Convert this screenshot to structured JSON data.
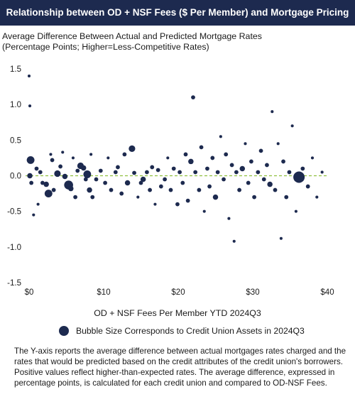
{
  "header": {
    "title": "Relationship between OD + NSF Fees ($ Per Member) and Mortgage Pricing"
  },
  "legend_text": "Bubble Size Corresponds to Credit Union Assets in 2024Q3",
  "footnote": "The Y-axis reports the average difference between actual mortgages rates charged and the rates that would be predicted based on the credit attributes of the credit union's borrowers. Positive values reflect higher-than-expected rates. The average difference, expressed in percentage points, is calculated for each credit union and compared to OD-NSF Fees.",
  "chart_data": {
    "type": "scatter",
    "subtitle_line1": "Average Difference Between Actual and Predicted Mortgage Rates",
    "subtitle_line2": "(Percentage Points; Higher=Less-Competitive Rates)",
    "xlabel": "OD + NSF Fees Per Member YTD 2024Q3",
    "ylabel": "",
    "xlim": [
      0,
      40
    ],
    "ylim": [
      -1.5,
      1.5
    ],
    "x_ticks": [
      {
        "value": 0,
        "label": "$0"
      },
      {
        "value": 10,
        "label": "$10"
      },
      {
        "value": 20,
        "label": "$20"
      },
      {
        "value": 30,
        "label": "$30"
      },
      {
        "value": 40,
        "label": "$40"
      }
    ],
    "y_ticks": [
      {
        "value": 1.5,
        "label": "1.5"
      },
      {
        "value": 1.0,
        "label": "1.0"
      },
      {
        "value": 0.5,
        "label": "0.5"
      },
      {
        "value": 0.0,
        "label": "0.0"
      },
      {
        "value": -0.5,
        "label": "-0.5"
      },
      {
        "value": -1.0,
        "label": "-1.0"
      },
      {
        "value": -1.5,
        "label": "-1.5"
      }
    ],
    "reference_line": {
      "y": 0,
      "style": "dashed",
      "color": "#8fbf3f"
    },
    "grid": false,
    "colors": {
      "bubble": "#1d2a4f",
      "title_bar": "#1d2a4f",
      "reference_line": "#8fbf3f"
    },
    "points": [
      {
        "x": 0.0,
        "y": 1.4,
        "size": 1
      },
      {
        "x": 0.1,
        "y": 0.98,
        "size": 1
      },
      {
        "x": 0.2,
        "y": 0.22,
        "size": 5
      },
      {
        "x": 0.1,
        "y": 0.0,
        "size": 3
      },
      {
        "x": 0.3,
        "y": -0.1,
        "size": 2
      },
      {
        "x": 0.6,
        "y": -0.55,
        "size": 1
      },
      {
        "x": 1.0,
        "y": 0.1,
        "size": 2
      },
      {
        "x": 1.2,
        "y": -0.4,
        "size": 1
      },
      {
        "x": 1.5,
        "y": 0.05,
        "size": 2
      },
      {
        "x": 1.8,
        "y": -0.1,
        "size": 2
      },
      {
        "x": 2.3,
        "y": -0.12,
        "size": 3
      },
      {
        "x": 2.6,
        "y": -0.25,
        "size": 5
      },
      {
        "x": 2.9,
        "y": 0.3,
        "size": 1
      },
      {
        "x": 3.1,
        "y": 0.22,
        "size": 2
      },
      {
        "x": 3.3,
        "y": -0.2,
        "size": 2
      },
      {
        "x": 3.8,
        "y": 0.03,
        "size": 4
      },
      {
        "x": 4.2,
        "y": 0.13,
        "size": 2
      },
      {
        "x": 4.5,
        "y": 0.33,
        "size": 1
      },
      {
        "x": 4.8,
        "y": -0.01,
        "size": 3
      },
      {
        "x": 5.3,
        "y": -0.13,
        "size": 6
      },
      {
        "x": 5.6,
        "y": -0.18,
        "size": 3
      },
      {
        "x": 5.9,
        "y": 0.25,
        "size": 1
      },
      {
        "x": 6.2,
        "y": -0.3,
        "size": 2
      },
      {
        "x": 6.5,
        "y": 0.07,
        "size": 2
      },
      {
        "x": 6.9,
        "y": 0.14,
        "size": 4
      },
      {
        "x": 7.3,
        "y": 0.11,
        "size": 3
      },
      {
        "x": 7.6,
        "y": -0.05,
        "size": 2
      },
      {
        "x": 7.8,
        "y": 0.02,
        "size": 5
      },
      {
        "x": 8.1,
        "y": -0.2,
        "size": 3
      },
      {
        "x": 8.3,
        "y": 0.3,
        "size": 1
      },
      {
        "x": 8.5,
        "y": -0.3,
        "size": 2
      },
      {
        "x": 9.0,
        "y": -0.05,
        "size": 2
      },
      {
        "x": 9.6,
        "y": 0.07,
        "size": 2
      },
      {
        "x": 10.2,
        "y": -0.1,
        "size": 2
      },
      {
        "x": 10.6,
        "y": 0.25,
        "size": 1
      },
      {
        "x": 11.0,
        "y": -0.2,
        "size": 2
      },
      {
        "x": 11.6,
        "y": 0.05,
        "size": 2
      },
      {
        "x": 11.9,
        "y": 0.12,
        "size": 2
      },
      {
        "x": 12.4,
        "y": -0.25,
        "size": 2
      },
      {
        "x": 12.8,
        "y": 0.3,
        "size": 2
      },
      {
        "x": 13.2,
        "y": -0.1,
        "size": 3
      },
      {
        "x": 13.8,
        "y": 0.38,
        "size": 4
      },
      {
        "x": 14.1,
        "y": 0.04,
        "size": 2
      },
      {
        "x": 14.6,
        "y": -0.3,
        "size": 1
      },
      {
        "x": 15.0,
        "y": -0.1,
        "size": 2
      },
      {
        "x": 15.3,
        "y": -0.05,
        "size": 3
      },
      {
        "x": 15.8,
        "y": 0.05,
        "size": 2
      },
      {
        "x": 16.2,
        "y": -0.2,
        "size": 2
      },
      {
        "x": 16.5,
        "y": 0.12,
        "size": 2
      },
      {
        "x": 16.9,
        "y": -0.4,
        "size": 1
      },
      {
        "x": 17.3,
        "y": 0.08,
        "size": 2
      },
      {
        "x": 17.7,
        "y": -0.15,
        "size": 2
      },
      {
        "x": 18.2,
        "y": -0.05,
        "size": 2
      },
      {
        "x": 18.6,
        "y": 0.25,
        "size": 1
      },
      {
        "x": 19.0,
        "y": -0.2,
        "size": 2
      },
      {
        "x": 19.4,
        "y": 0.1,
        "size": 2
      },
      {
        "x": 19.9,
        "y": -0.4,
        "size": 2
      },
      {
        "x": 20.2,
        "y": 0.05,
        "size": 2
      },
      {
        "x": 20.6,
        "y": -0.1,
        "size": 2
      },
      {
        "x": 21.0,
        "y": 0.3,
        "size": 2
      },
      {
        "x": 21.3,
        "y": -0.35,
        "size": 2
      },
      {
        "x": 21.7,
        "y": 0.2,
        "size": 3
      },
      {
        "x": 22.0,
        "y": 1.1,
        "size": 2
      },
      {
        "x": 22.3,
        "y": 0.05,
        "size": 2
      },
      {
        "x": 22.8,
        "y": -0.2,
        "size": 2
      },
      {
        "x": 23.1,
        "y": 0.4,
        "size": 2
      },
      {
        "x": 23.5,
        "y": -0.5,
        "size": 1
      },
      {
        "x": 23.9,
        "y": 0.1,
        "size": 2
      },
      {
        "x": 24.2,
        "y": -0.15,
        "size": 2
      },
      {
        "x": 24.6,
        "y": 0.25,
        "size": 2
      },
      {
        "x": 25.0,
        "y": -0.3,
        "size": 3
      },
      {
        "x": 25.3,
        "y": 0.05,
        "size": 2
      },
      {
        "x": 25.7,
        "y": 0.55,
        "size": 1
      },
      {
        "x": 26.1,
        "y": -0.05,
        "size": 2
      },
      {
        "x": 26.4,
        "y": 0.3,
        "size": 2
      },
      {
        "x": 26.8,
        "y": -0.6,
        "size": 1
      },
      {
        "x": 27.2,
        "y": 0.15,
        "size": 2
      },
      {
        "x": 27.5,
        "y": -0.92,
        "size": 1
      },
      {
        "x": 27.8,
        "y": 0.05,
        "size": 2
      },
      {
        "x": 28.2,
        "y": -0.2,
        "size": 2
      },
      {
        "x": 28.6,
        "y": 0.1,
        "size": 3
      },
      {
        "x": 29.0,
        "y": 0.45,
        "size": 1
      },
      {
        "x": 29.4,
        "y": -0.1,
        "size": 2
      },
      {
        "x": 29.8,
        "y": 0.2,
        "size": 2
      },
      {
        "x": 30.2,
        "y": -0.3,
        "size": 2
      },
      {
        "x": 30.7,
        "y": 0.05,
        "size": 2
      },
      {
        "x": 31.1,
        "y": 0.35,
        "size": 2
      },
      {
        "x": 31.5,
        "y": -0.05,
        "size": 2
      },
      {
        "x": 31.9,
        "y": 0.15,
        "size": 2
      },
      {
        "x": 32.3,
        "y": -0.12,
        "size": 3
      },
      {
        "x": 32.6,
        "y": 0.9,
        "size": 1
      },
      {
        "x": 33.0,
        "y": -0.2,
        "size": 2
      },
      {
        "x": 33.4,
        "y": 0.45,
        "size": 1
      },
      {
        "x": 33.8,
        "y": -0.88,
        "size": 1
      },
      {
        "x": 34.1,
        "y": 0.2,
        "size": 2
      },
      {
        "x": 34.5,
        "y": -0.3,
        "size": 2
      },
      {
        "x": 34.9,
        "y": 0.05,
        "size": 2
      },
      {
        "x": 35.3,
        "y": 0.7,
        "size": 1
      },
      {
        "x": 35.8,
        "y": -0.5,
        "size": 1
      },
      {
        "x": 36.2,
        "y": -0.02,
        "size": 8
      },
      {
        "x": 36.7,
        "y": 0.1,
        "size": 2
      },
      {
        "x": 37.4,
        "y": -0.15,
        "size": 2
      },
      {
        "x": 38.0,
        "y": 0.25,
        "size": 1
      },
      {
        "x": 38.6,
        "y": -0.3,
        "size": 1
      },
      {
        "x": 39.3,
        "y": 0.05,
        "size": 1
      }
    ]
  }
}
